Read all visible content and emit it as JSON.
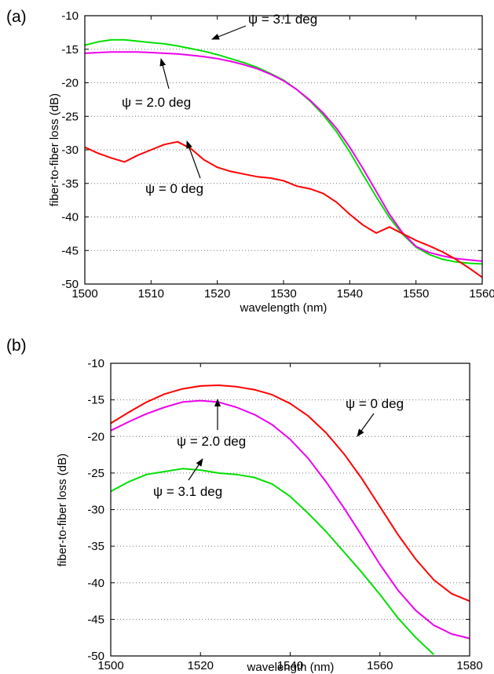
{
  "chart_data": [
    {
      "panel_label": "(a)",
      "type": "line",
      "xlabel": "wavelength (nm)",
      "ylabel": "fiber-to-fiber loss (dB)",
      "xlim": [
        1500,
        1560
      ],
      "ylim": [
        -50,
        -10
      ],
      "xticks": [
        1500,
        1510,
        1520,
        1530,
        1540,
        1550,
        1560
      ],
      "yticks": [
        -10,
        -15,
        -20,
        -25,
        -30,
        -35,
        -40,
        -45,
        -50
      ],
      "grid": "horizontal dotted",
      "series": [
        {
          "name": "ψ = 3.1 deg",
          "color": "#00e000",
          "x": [
            1500,
            1502,
            1504,
            1506,
            1508,
            1510,
            1512,
            1514,
            1516,
            1518,
            1520,
            1522,
            1524,
            1526,
            1528,
            1530,
            1532,
            1534,
            1536,
            1538,
            1540,
            1542,
            1544,
            1546,
            1548,
            1550,
            1552,
            1554,
            1556,
            1558,
            1560
          ],
          "y": [
            -14.4,
            -13.9,
            -13.6,
            -13.6,
            -13.8,
            -14.0,
            -14.2,
            -14.5,
            -14.9,
            -15.3,
            -15.8,
            -16.4,
            -17.0,
            -17.7,
            -18.6,
            -19.6,
            -21.0,
            -22.7,
            -24.8,
            -27.3,
            -30.3,
            -33.7,
            -37.0,
            -40.1,
            -42.6,
            -44.5,
            -45.6,
            -46.3,
            -46.7,
            -46.9,
            -47.0
          ]
        },
        {
          "name": "ψ = 2.0 deg",
          "color": "#ee00ee",
          "x": [
            1500,
            1502,
            1504,
            1506,
            1508,
            1510,
            1512,
            1514,
            1516,
            1518,
            1520,
            1522,
            1524,
            1526,
            1528,
            1530,
            1532,
            1534,
            1536,
            1538,
            1540,
            1542,
            1544,
            1546,
            1548,
            1550,
            1552,
            1554,
            1556,
            1558,
            1560
          ],
          "y": [
            -15.6,
            -15.5,
            -15.4,
            -15.4,
            -15.4,
            -15.5,
            -15.6,
            -15.7,
            -15.9,
            -16.1,
            -16.4,
            -16.8,
            -17.3,
            -17.9,
            -18.7,
            -19.7,
            -21.0,
            -22.6,
            -24.5,
            -26.8,
            -29.6,
            -32.8,
            -36.2,
            -39.6,
            -42.4,
            -44.4,
            -45.3,
            -45.8,
            -46.2,
            -46.4,
            -46.6
          ]
        },
        {
          "name": "ψ = 0 deg",
          "color": "#ff0000",
          "x": [
            1500,
            1502,
            1504,
            1506,
            1508,
            1510,
            1512,
            1514,
            1516,
            1518,
            1520,
            1522,
            1524,
            1526,
            1528,
            1530,
            1532,
            1534,
            1536,
            1538,
            1540,
            1542,
            1544,
            1546,
            1548,
            1550,
            1552,
            1554,
            1556,
            1558,
            1560
          ],
          "y": [
            -29.6,
            -30.5,
            -31.2,
            -31.8,
            -30.8,
            -30.0,
            -29.2,
            -28.8,
            -29.8,
            -31.5,
            -32.6,
            -33.2,
            -33.6,
            -34.0,
            -34.2,
            -34.6,
            -35.4,
            -35.8,
            -36.5,
            -37.8,
            -39.6,
            -41.2,
            -42.4,
            -41.5,
            -42.5,
            -43.5,
            -44.3,
            -45.2,
            -46.3,
            -47.6,
            -49.0
          ]
        }
      ],
      "annotations": [
        {
          "text": "ψ = 3.1 deg",
          "target": [
            1537,
            -13.6
          ]
        },
        {
          "text": "ψ = 2.0 deg",
          "target": [
            1511.5,
            -16.0
          ]
        },
        {
          "text": "ψ = 0 deg",
          "target": [
            1514.5,
            -29.3
          ]
        }
      ]
    },
    {
      "panel_label": "(b)",
      "type": "line",
      "xlabel": "wavelength (nm)",
      "ylabel": "fiber-to-fiber loss (dB)",
      "xlim": [
        1500,
        1580
      ],
      "ylim": [
        -50,
        -10
      ],
      "xticks": [
        1500,
        1520,
        1540,
        1560,
        1580
      ],
      "yticks": [
        -10,
        -15,
        -20,
        -25,
        -30,
        -35,
        -40,
        -45,
        -50
      ],
      "grid": "horizontal dotted",
      "series": [
        {
          "name": "ψ = 0 deg",
          "color": "#ff0000",
          "x": [
            1500,
            1504,
            1508,
            1512,
            1516,
            1520,
            1524,
            1528,
            1532,
            1536,
            1540,
            1544,
            1548,
            1552,
            1556,
            1560,
            1564,
            1568,
            1572,
            1576,
            1580
          ],
          "y": [
            -18.2,
            -16.7,
            -15.3,
            -14.2,
            -13.5,
            -13.1,
            -13.0,
            -13.2,
            -13.6,
            -14.3,
            -15.5,
            -17.2,
            -19.5,
            -22.4,
            -25.8,
            -29.6,
            -33.4,
            -36.8,
            -39.6,
            -41.5,
            -42.5
          ]
        },
        {
          "name": "ψ = 2.0 deg",
          "color": "#ee00ee",
          "x": [
            1500,
            1504,
            1508,
            1512,
            1516,
            1520,
            1524,
            1528,
            1532,
            1536,
            1540,
            1544,
            1548,
            1552,
            1556,
            1560,
            1564,
            1568,
            1572,
            1576,
            1580
          ],
          "y": [
            -19.2,
            -18.0,
            -16.9,
            -16.0,
            -15.3,
            -15.1,
            -15.3,
            -16.0,
            -17.0,
            -18.4,
            -20.4,
            -23.0,
            -26.2,
            -29.8,
            -33.6,
            -37.5,
            -41.0,
            -43.8,
            -45.8,
            -47.0,
            -47.6
          ]
        },
        {
          "name": "ψ = 3.1 deg",
          "color": "#00e000",
          "x": [
            1500,
            1504,
            1508,
            1512,
            1516,
            1520,
            1524,
            1528,
            1532,
            1536,
            1540,
            1544,
            1548,
            1552,
            1556,
            1560,
            1564,
            1568,
            1572
          ],
          "y": [
            -27.5,
            -26.2,
            -25.2,
            -24.8,
            -24.4,
            -24.6,
            -25.0,
            -25.2,
            -25.6,
            -26.5,
            -28.2,
            -30.5,
            -33.0,
            -35.8,
            -38.6,
            -41.6,
            -44.8,
            -47.5,
            -49.8
          ]
        }
      ],
      "annotations": [
        {
          "text": "ψ = 0 deg",
          "target": [
            1559,
            -19.8
          ]
        },
        {
          "text": "ψ = 2.0 deg",
          "target": [
            1525,
            -15.6
          ]
        },
        {
          "text": "ψ = 3.1 deg",
          "target": [
            1516,
            -25.4
          ]
        }
      ]
    }
  ]
}
